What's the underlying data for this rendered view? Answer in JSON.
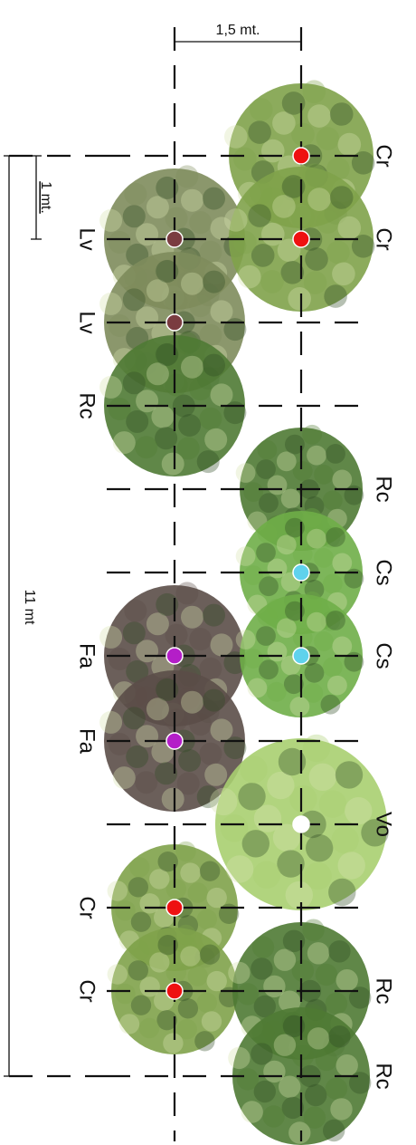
{
  "dimensions": {
    "row_spacing": "1,5 mt.",
    "plant_spacing": "1 mt.",
    "total_length": "11 mt"
  },
  "left_row": [
    {
      "code": "Lv",
      "dot_color": "#7a3c40"
    },
    {
      "code": "Lv",
      "dot_color": "#7a3c40"
    },
    {
      "code": "Rc",
      "dot_color": ""
    },
    {
      "code": "Fa",
      "dot_color": "#b41ec8"
    },
    {
      "code": "Fa",
      "dot_color": "#b41ec8"
    },
    {
      "code": "Cr",
      "dot_color": "#ee1111"
    },
    {
      "code": "Cr",
      "dot_color": "#ee1111"
    }
  ],
  "right_row": [
    {
      "code": "Cr",
      "dot_color": "#ee1111"
    },
    {
      "code": "Cr",
      "dot_color": "#ee1111"
    },
    {
      "code": "Rc",
      "dot_color": ""
    },
    {
      "code": "Cs",
      "dot_color": "#5fd2ec"
    },
    {
      "code": "Cs",
      "dot_color": "#5fd2ec"
    },
    {
      "code": "Vo",
      "dot_color": "#ffffff"
    },
    {
      "code": "Rc",
      "dot_color": ""
    },
    {
      "code": "Rc",
      "dot_color": ""
    }
  ],
  "canopy_colors": {
    "Lv": "#7e8c5c",
    "Rc": "#4f7a34",
    "Fa": "#5b4e48",
    "Cr": "#7fa24a",
    "Cs": "#6fae48",
    "Vo": "#a9cf70"
  }
}
